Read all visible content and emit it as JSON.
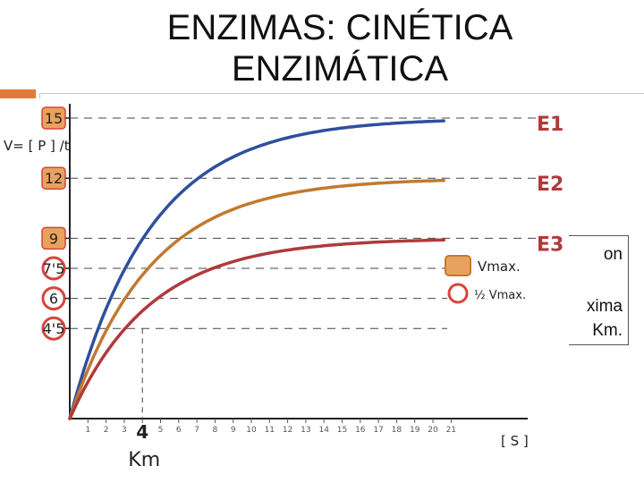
{
  "slide": {
    "title_line1": "ENZIMAS: CINÉTICA",
    "title_line2": "ENZIMÁTICA"
  },
  "side_box": {
    "line1": "on",
    "line2": "xima",
    "line3": "Km."
  },
  "chart_data": {
    "type": "line",
    "title": "",
    "ylabel": "V= [ P ] /t",
    "xlabel": "[ S ]",
    "x_ticks": [
      "1",
      "2",
      "3",
      "4",
      "5",
      "6",
      "7",
      "8",
      "9",
      "10",
      "11",
      "12",
      "13",
      "14",
      "15",
      "16",
      "17",
      "18",
      "19",
      "20",
      "21"
    ],
    "xlim": [
      0,
      21
    ],
    "ylim": [
      0,
      15
    ],
    "y_marked": [
      "15",
      "12",
      "9",
      "7'5",
      "6",
      "4'5"
    ],
    "y_marked_values": [
      15,
      12,
      9,
      7.5,
      6,
      4.5
    ],
    "km_label": "Km",
    "km_value": 4,
    "series": [
      {
        "name": "E1",
        "vmax": 15,
        "km": 4,
        "color": "#2f4f9f"
      },
      {
        "name": "E2",
        "vmax": 12,
        "km": 4,
        "color": "#c07a2e"
      },
      {
        "name": "E3",
        "vmax": 9,
        "km": 4,
        "color": "#b03a3a"
      }
    ],
    "legend": {
      "placement": "center-right",
      "items": [
        {
          "label": "Vmax.",
          "marker": "filled-square",
          "color": "#e07b39"
        },
        {
          "label": "½ Vmax.",
          "marker": "ring",
          "color": "#d9443a"
        }
      ]
    },
    "grid": false
  },
  "colors": {
    "accent": "#e07b39",
    "marker_ring": "#d9443a"
  }
}
